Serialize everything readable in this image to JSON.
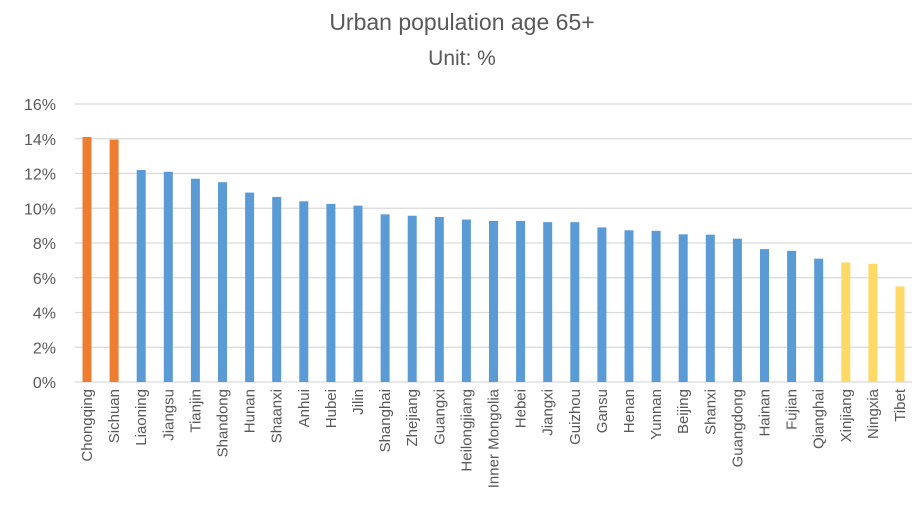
{
  "chart_data": {
    "type": "bar",
    "title": "Urban population age 65+",
    "subtitle": "Unit: %",
    "xlabel": "",
    "ylabel": "",
    "ylim": [
      0,
      16
    ],
    "yticks": [
      0,
      2,
      4,
      6,
      8,
      10,
      12,
      14,
      16
    ],
    "ytick_labels": [
      "0%",
      "2%",
      "4%",
      "6%",
      "8%",
      "10%",
      "12%",
      "14%",
      "16%"
    ],
    "grid": true,
    "legend": "none",
    "categories": [
      "Chongqing",
      "Sichuan",
      "Liaoning",
      "Jiangsu",
      "Tianjin",
      "Shandong",
      "Hunan",
      "Shaanxi",
      "Anhui",
      "Hubei",
      "Jilin",
      "Shanghai",
      "Zhejiang",
      "Guangxi",
      "Heilongjiang",
      "Inner Mongolia",
      "Hebei",
      "Jiangxi",
      "Guizhou",
      "Gansu",
      "Henan",
      "Yunnan",
      "Beijing",
      "Shanxi",
      "Guangdong",
      "Hainan",
      "Fujian",
      "Qianghai",
      "Xinjiang",
      "Ningxia",
      "Tibet"
    ],
    "values": [
      14.1,
      13.95,
      12.2,
      12.1,
      11.7,
      11.5,
      10.9,
      10.65,
      10.4,
      10.25,
      10.15,
      9.65,
      9.57,
      9.5,
      9.35,
      9.27,
      9.27,
      9.2,
      9.2,
      8.9,
      8.73,
      8.7,
      8.5,
      8.48,
      8.25,
      7.65,
      7.55,
      7.1,
      6.88,
      6.8,
      5.5
    ],
    "groups": [
      "high",
      "high",
      "mid",
      "mid",
      "mid",
      "mid",
      "mid",
      "mid",
      "mid",
      "mid",
      "mid",
      "mid",
      "mid",
      "mid",
      "mid",
      "mid",
      "mid",
      "mid",
      "mid",
      "mid",
      "mid",
      "mid",
      "mid",
      "mid",
      "mid",
      "mid",
      "mid",
      "mid",
      "low",
      "low",
      "low"
    ],
    "colors": {
      "high": "#ed7d31",
      "mid": "#5b9bd5",
      "low": "#ffd966"
    }
  }
}
